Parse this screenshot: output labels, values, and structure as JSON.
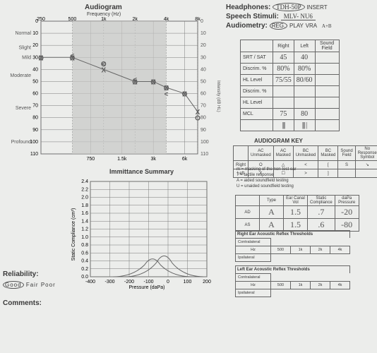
{
  "audiogram": {
    "title": "Audiogram",
    "subtitle": "Frequency (Hz)",
    "right_axis_title": "Intensity (dB HL)",
    "x_ticks_top": [
      "250",
      "500",
      "1k",
      "2k",
      "4k",
      "8k"
    ],
    "x_ticks_bottom": [
      "750",
      "1.5k",
      "3k",
      "6k"
    ],
    "y_ticks": [
      0,
      10,
      20,
      30,
      40,
      50,
      60,
      70,
      80,
      90,
      100,
      110
    ],
    "categories": [
      "Normal",
      "Slight",
      "Mild",
      "Moderate",
      "",
      "Severe",
      "",
      "Profound"
    ],
    "shaded_band_hz": [
      500,
      4000
    ],
    "grid_color": "#7a7a7a",
    "points_right": [
      {
        "hz": 250,
        "db": 30
      },
      {
        "hz": 500,
        "db": 30
      },
      {
        "hz": 1000,
        "db": 35
      },
      {
        "hz": 2000,
        "db": 50
      },
      {
        "hz": 3000,
        "db": 50
      },
      {
        "hz": 4000,
        "db": 55
      },
      {
        "hz": 6000,
        "db": 60
      },
      {
        "hz": 8000,
        "db": 80
      }
    ],
    "points_left": [
      {
        "hz": 250,
        "db": 30
      },
      {
        "hz": 500,
        "db": 30
      },
      {
        "hz": 1000,
        "db": 40
      },
      {
        "hz": 2000,
        "db": 50
      },
      {
        "hz": 3000,
        "db": 50
      },
      {
        "hz": 4000,
        "db": 55
      },
      {
        "hz": 6000,
        "db": 60
      },
      {
        "hz": 8000,
        "db": 75
      }
    ],
    "bone_right": [
      {
        "hz": 500,
        "db": 28
      },
      {
        "hz": 1000,
        "db": 35
      },
      {
        "hz": 2000,
        "db": 48
      },
      {
        "hz": 4000,
        "db": 60
      }
    ]
  },
  "header": {
    "headphones_label": "Headphones:",
    "headphones_value": "TDH-50P",
    "headphones_after": "INSERT",
    "stimuli_label": "Speech Stimuli:",
    "stimuli_value": "MLV- NU6",
    "audiometry_label": "Audiometry:",
    "audiometry_opts": [
      "REG.",
      "PLAY",
      "VRA"
    ],
    "audiometry_note": "A+B"
  },
  "speech_table": {
    "cols": [
      "",
      "Right",
      "Left",
      "Sound Field"
    ],
    "rows": [
      {
        "lab": "SRT / SAT",
        "r": "45",
        "l": "40",
        "sf": ""
      },
      {
        "lab": "Discrim. %",
        "r": "80%",
        "l": "80%",
        "sf": ""
      },
      {
        "lab": "HL Level",
        "r": "75/55",
        "l": "80/60",
        "sf": ""
      },
      {
        "lab": "Discrim. %",
        "r": "",
        "l": "",
        "sf": ""
      },
      {
        "lab": "HL Level",
        "r": "",
        "l": "",
        "sf": ""
      },
      {
        "lab": "MCL",
        "r": "75",
        "l": "80",
        "sf": ""
      }
    ],
    "tally_right": "||||",
    "tally_left": "|||| |"
  },
  "key": {
    "title": "AUDIOGRAM KEY",
    "headers": [
      "",
      "AC Unmasked",
      "AC Masked",
      "BC Unmasked",
      "BC Masked",
      "Sound Field",
      "No Response Symbol"
    ],
    "right": [
      "Right",
      "O",
      "△",
      "<",
      "[",
      "S",
      "↘"
    ],
    "left": [
      "Left",
      "X",
      "☐",
      ">",
      "]",
      "",
      ""
    ],
    "notes": [
      "m = masking of the non-test ear",
      "T = tactile response",
      "A = aided soundfield testing",
      "U = unaided soundfield testing"
    ]
  },
  "tymp": {
    "headers": [
      "",
      "Type",
      "Ear Canal Vol",
      "Static Compliance",
      "daPa Pressure"
    ],
    "rows": [
      {
        "ear": "AD",
        "type": "A",
        "vol": "1.5",
        "sc": ".7",
        "p": "-20"
      },
      {
        "ear": "AS",
        "type": "A",
        "vol": "1.5",
        "sc": ".6",
        "p": "-80"
      }
    ]
  },
  "reflex": {
    "right_title": "Right Ear Acoustic Reflex Thresholds",
    "left_title": "Left Ear Acoustic Reflex Thresholds",
    "cols": [
      "Hz",
      "500",
      "1k",
      "2k",
      "4k"
    ],
    "row_labels": [
      "Contralateral",
      "Ipsilateral"
    ]
  },
  "immittance": {
    "title": "Immittance Summary",
    "y_label": "Static Compliance (cm³)",
    "x_label": "Pressure (daPa)",
    "y_ticks": [
      0,
      0.2,
      0.4,
      0.6,
      0.8,
      1.0,
      1.2,
      1.4,
      1.6,
      1.8,
      2.0,
      2.2,
      2.4
    ],
    "x_ticks": [
      -400,
      -300,
      -200,
      -100,
      0,
      100,
      200
    ],
    "curve1": {
      "peak_x": -20,
      "peak_y": 0.7,
      "color": "#666"
    },
    "curve2": {
      "peak_x": -80,
      "peak_y": 0.6,
      "color": "#888"
    }
  },
  "bottom": {
    "reliability_label": "Reliability:",
    "reliability_opts": [
      "Good",
      "Fair",
      "Poor"
    ],
    "comments_label": "Comments:"
  }
}
